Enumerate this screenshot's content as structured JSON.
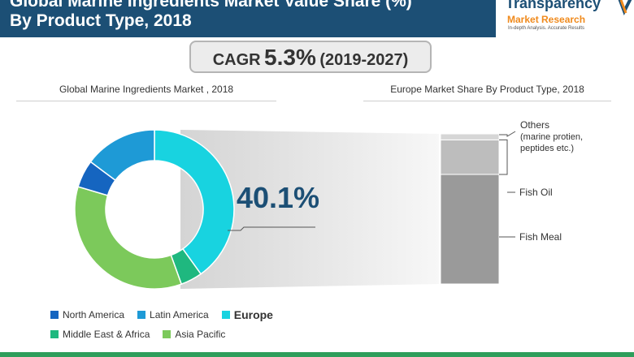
{
  "header": {
    "title_line1": "Global Marine Ingredients Market Value Share (%)",
    "title_line2": "By Product Type, 2018"
  },
  "logo": {
    "name": "Transparency",
    "sub": "Market Research",
    "tagline": "In-depth Analysis. Accurate Results"
  },
  "cagr": {
    "label": "CAGR",
    "value": "5.3%",
    "range": "(2019-2027)"
  },
  "colors": {
    "header": "#1c4f75",
    "north_america": "#1565c0",
    "latin_america": "#1e9ad6",
    "europe": "#18d3e0",
    "middle_east_africa": "#1fb87f",
    "asia_pacific": "#7cc95b",
    "fish_meal": "#9a9a9a",
    "fish_oil": "#bdbdbd",
    "others": "#d6d6d6"
  },
  "chart_data": [
    {
      "type": "pie",
      "title": "Global Marine Ingredients Market , 2018",
      "categories": [
        "Europe",
        "Middle East & Africa",
        "Asia Pacific",
        "North America",
        "Latin America"
      ],
      "values": [
        40.1,
        4.4,
        35.1,
        5.6,
        14.8
      ],
      "highlight": "Europe",
      "highlight_label": "40.1%",
      "legend": [
        "North America",
        "Latin America",
        "Europe",
        "Middle East & Africa",
        "Asia Pacific"
      ],
      "legend_placement": "bottom"
    },
    {
      "type": "bar",
      "stacked": true,
      "title": "Europe Market Share By Product Type, 2018",
      "categories": [
        "Fish Meal",
        "Fish Oil",
        "Others"
      ],
      "values": [
        73,
        23,
        4
      ],
      "labels": {
        "others_line1": "Others",
        "others_line2": "(marine protien,",
        "others_line3": "peptides etc.)",
        "fish_oil": "Fish Oil",
        "fish_meal": "Fish Meal"
      }
    }
  ]
}
